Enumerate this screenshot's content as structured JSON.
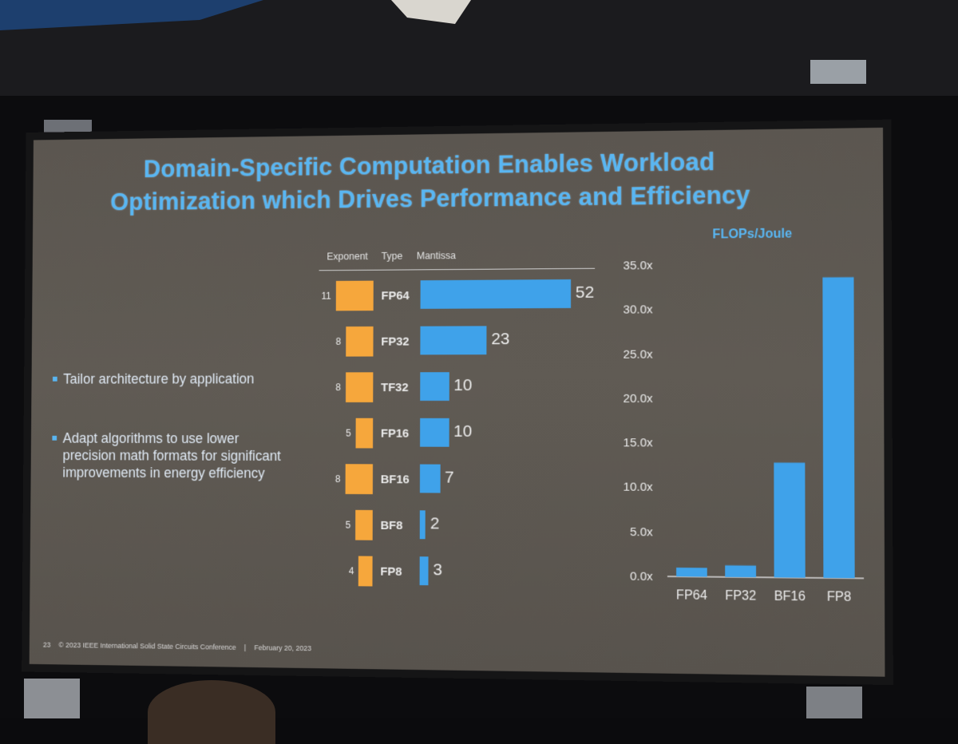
{
  "slide": {
    "title_line1": "Domain-Specific Computation Enables Workload",
    "title_line2": "Optimization which Drives Performance and Efficiency",
    "bullets": [
      "Tailor architecture by application",
      "Adapt algorithms to use lower precision math formats for significant improvements in energy efficiency"
    ],
    "footer": {
      "page": "23",
      "copyright": "© 2023 IEEE International Solid State Circuits Conference",
      "separator": "|",
      "date": "February 20, 2023"
    }
  },
  "chart_data": [
    {
      "type": "bar",
      "headers": {
        "exponent": "Exponent",
        "type": "Type",
        "mantissa": "Mantissa"
      },
      "categories": [
        "FP64",
        "FP32",
        "TF32",
        "FP16",
        "BF16",
        "BF8",
        "FP8"
      ],
      "series": [
        {
          "name": "Exponent",
          "values": [
            11,
            8,
            8,
            5,
            8,
            5,
            4
          ],
          "color": "#f6a73c"
        },
        {
          "name": "Mantissa",
          "values": [
            52,
            23,
            10,
            10,
            7,
            2,
            3
          ],
          "color": "#3fa2ea"
        }
      ]
    },
    {
      "type": "bar",
      "title": "FLOPs/Joule",
      "categories": [
        "FP64",
        "FP32",
        "BF16",
        "FP8"
      ],
      "values": [
        1.0,
        1.3,
        12.8,
        33.5
      ],
      "ylim": [
        0,
        35
      ],
      "yticks": [
        "0.0x",
        "5.0x",
        "10.0x",
        "15.0x",
        "20.0x",
        "25.0x",
        "30.0x",
        "35.0x"
      ],
      "bar_color": "#3fa2ea",
      "title_color": "#59b6f2"
    }
  ]
}
